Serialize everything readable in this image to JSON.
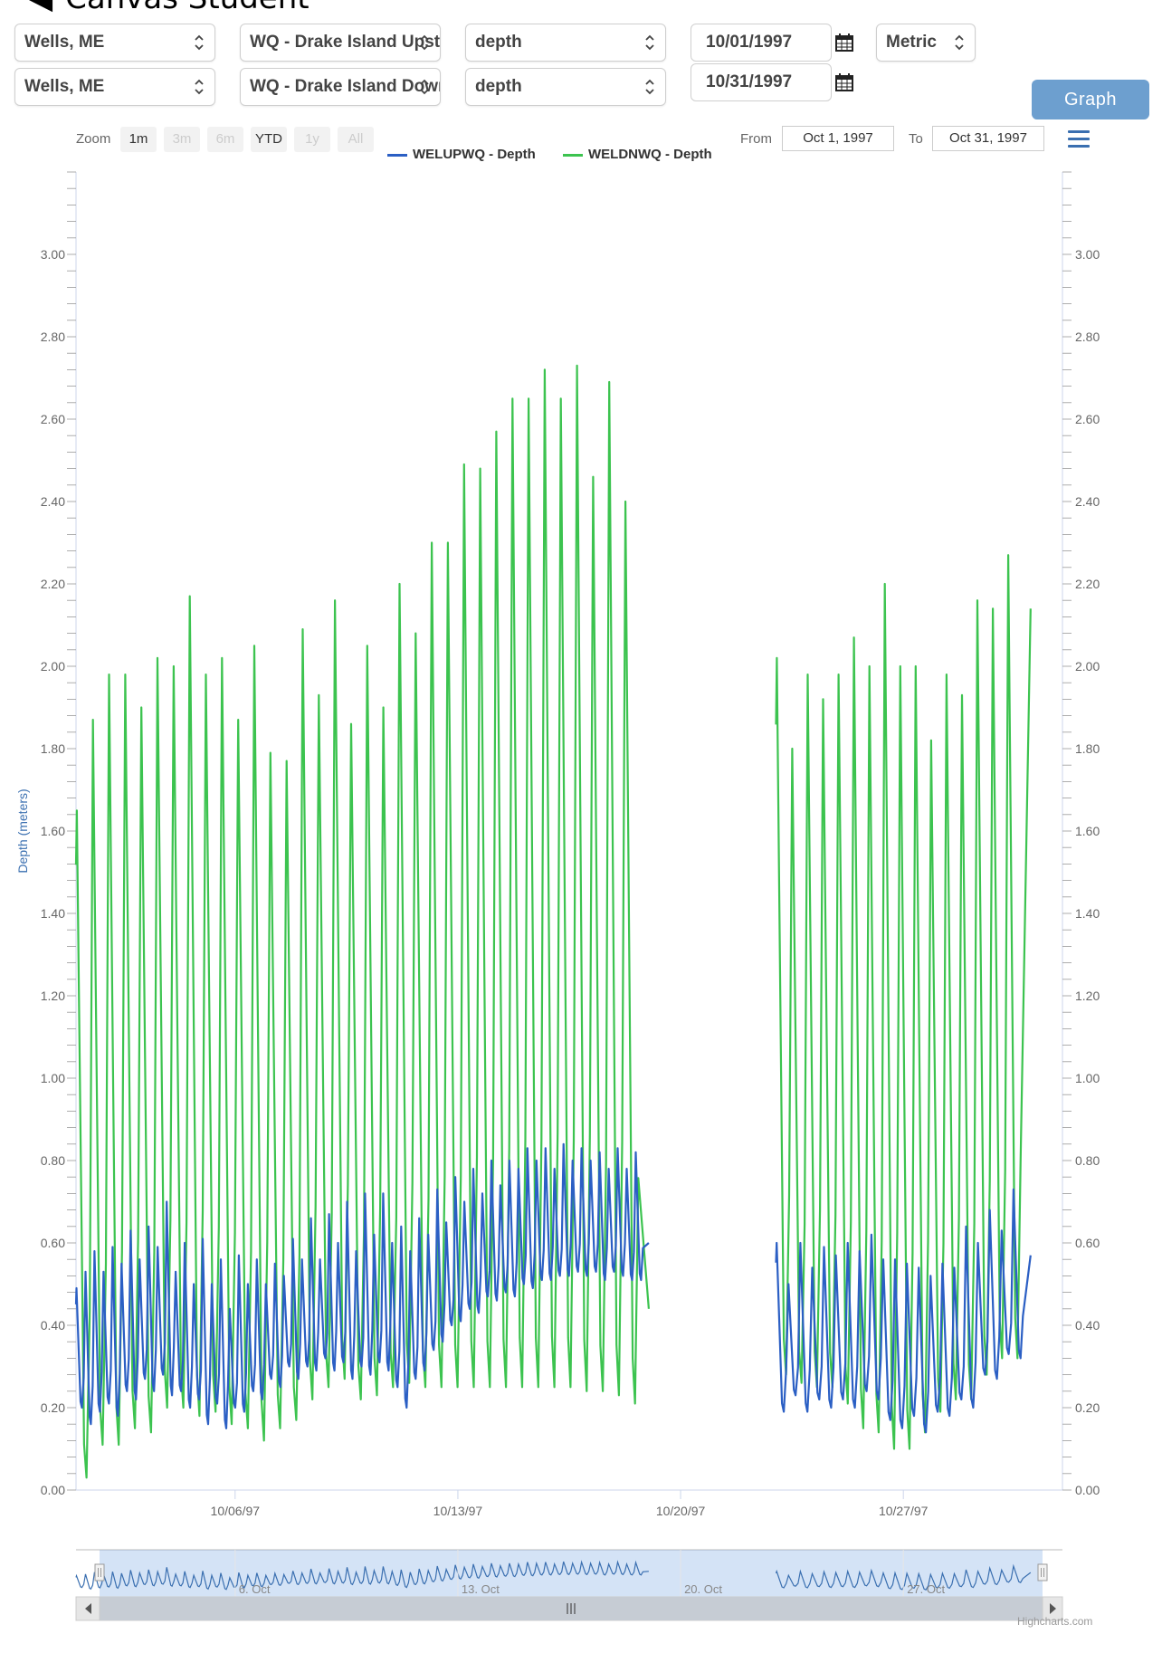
{
  "app": {
    "title": "Canvas Student",
    "back_glyph": "◀"
  },
  "row1": {
    "location": "Wells, ME",
    "station": "WQ - Drake Island Upstre",
    "parameter": "depth",
    "start_date": "10/01/1997",
    "units": "Metric"
  },
  "row2": {
    "location": "Wells, ME",
    "station": "WQ - Drake Island Downs",
    "parameter": "depth",
    "end_date": "10/31/1997",
    "graph_label": "Graph"
  },
  "range_selector": {
    "zoom_label": "Zoom",
    "buttons": [
      "1m",
      "3m",
      "6m",
      "YTD",
      "1y",
      "All"
    ],
    "from_label": "From",
    "from_value": "Oct 1, 1997",
    "to_label": "To",
    "to_value": "Oct 31, 1997"
  },
  "icons": {
    "menu": "hamburger-menu-icon",
    "calendar": "calendar-icon",
    "chevron": "chevron-up-down-icon"
  },
  "credits": "Highcharts.com",
  "chart_data": {
    "type": "line",
    "title": "",
    "xlabel": "",
    "ylabel": "Depth (meters)",
    "ylim": [
      0,
      3.2
    ],
    "y_ticks": [
      "0.00",
      "0.20",
      "0.40",
      "0.60",
      "0.80",
      "1.00",
      "1.20",
      "1.40",
      "1.60",
      "1.80",
      "2.00",
      "2.20",
      "2.40",
      "2.60",
      "2.80",
      "3.00"
    ],
    "x_range": [
      "1997-10-01",
      "1997-10-31"
    ],
    "x_ticks": [
      {
        "date": "1997-10-06",
        "label": "10/06/97"
      },
      {
        "date": "1997-10-13",
        "label": "10/13/97"
      },
      {
        "date": "1997-10-20",
        "label": "10/20/97"
      },
      {
        "date": "1997-10-27",
        "label": "10/27/97"
      }
    ],
    "navigator_ticks": [
      {
        "date": "1997-10-06",
        "label": "6. Oct"
      },
      {
        "date": "1997-10-13",
        "label": "13. Oct"
      },
      {
        "date": "1997-10-20",
        "label": "20. Oct"
      },
      {
        "date": "1997-10-27",
        "label": "27. Oct"
      }
    ],
    "legend_placement": "top-center",
    "series": [
      {
        "name": "WELUPWQ - Depth",
        "color": "#2b5fc4",
        "segments": [
          {
            "start": "1997-10-01",
            "end": "1997-10-19",
            "highs": [
              0.49,
              0.53,
              0.58,
              0.53,
              0.59,
              0.55,
              0.63,
              0.56,
              0.64,
              0.59,
              0.7,
              0.53,
              0.6,
              0.5,
              0.61,
              0.5,
              0.56,
              0.44,
              0.57,
              0.5,
              0.56,
              0.5,
              0.55,
              0.52,
              0.61,
              0.56,
              0.66,
              0.56,
              0.67,
              0.6,
              0.7,
              0.58,
              0.72,
              0.62,
              0.72,
              0.6,
              0.64,
              0.58,
              0.66,
              0.62,
              0.73,
              0.65,
              0.76,
              0.7,
              0.78,
              0.72,
              0.8,
              0.74,
              0.8,
              0.78,
              0.83,
              0.8,
              0.83,
              0.78,
              0.84,
              0.8,
              0.83,
              0.8,
              0.82,
              0.78,
              0.83,
              0.78,
              0.82
            ],
            "lows": [
              0.2,
              0.16,
              0.19,
              0.21,
              0.18,
              0.24,
              0.22,
              0.27,
              0.24,
              0.28,
              0.23,
              0.24,
              0.2,
              0.22,
              0.16,
              0.21,
              0.15,
              0.2,
              0.19,
              0.24,
              0.22,
              0.27,
              0.25,
              0.3,
              0.27,
              0.3,
              0.29,
              0.32,
              0.29,
              0.31,
              0.27,
              0.3,
              0.28,
              0.31,
              0.29,
              0.25,
              0.2,
              0.27,
              0.29,
              0.34,
              0.36,
              0.4,
              0.41,
              0.44,
              0.43,
              0.47,
              0.46,
              0.48,
              0.47,
              0.5,
              0.49,
              0.51,
              0.51,
              0.52,
              0.52,
              0.53,
              0.52,
              0.53,
              0.51,
              0.53,
              0.52,
              0.51
            ],
            "end_value": 0.6
          },
          {
            "start": "1997-10-23",
            "end": "1997-10-31",
            "highs": [
              0.6,
              0.5,
              0.6,
              0.54,
              0.59,
              0.57,
              0.6,
              0.58,
              0.62,
              0.56,
              0.56,
              0.55,
              0.54,
              0.52,
              0.55,
              0.54,
              0.64,
              0.6,
              0.68,
              0.63,
              0.73
            ],
            "lows": [
              0.19,
              0.23,
              0.19,
              0.22,
              0.2,
              0.22,
              0.2,
              0.24,
              0.22,
              0.17,
              0.15,
              0.18,
              0.14,
              0.19,
              0.18,
              0.22,
              0.2,
              0.28,
              0.27,
              0.33,
              0.32
            ],
            "end_value": 0.57
          }
        ]
      },
      {
        "name": "WELDNWQ - Depth",
        "color": "#3cc34f",
        "segments": [
          {
            "start": "1997-10-01",
            "end": "1997-10-19",
            "highs": [
              1.65,
              1.87,
              1.98,
              1.98,
              1.9,
              2.02,
              2.0,
              2.17,
              1.98,
              2.02,
              1.87,
              2.05,
              1.79,
              1.77,
              2.09,
              1.93,
              2.16,
              1.86,
              2.05,
              1.9,
              2.2,
              2.08,
              2.3,
              2.3,
              2.49,
              2.48,
              2.57,
              2.65,
              2.65,
              2.72,
              2.65,
              2.73,
              2.46,
              2.69,
              2.4
            ],
            "lows": [
              0.03,
              0.11,
              0.11,
              0.15,
              0.14,
              0.2,
              0.2,
              0.18,
              0.19,
              0.16,
              0.15,
              0.12,
              0.15,
              0.17,
              0.22,
              0.25,
              0.27,
              0.22,
              0.23,
              0.25,
              0.26,
              0.25,
              0.25,
              0.25,
              0.25,
              0.25,
              0.25,
              0.25,
              0.25,
              0.25,
              0.25,
              0.24,
              0.24,
              0.23,
              0.21
            ],
            "end_value": 0.44
          },
          {
            "start": "1997-10-23",
            "end": "1997-10-31",
            "highs": [
              2.02,
              1.8,
              1.98,
              1.92,
              1.98,
              2.07,
              2.0,
              2.2,
              2.0,
              2.0,
              1.82,
              1.98,
              1.93,
              2.16,
              2.14,
              2.27
            ],
            "lows": [
              0.28,
              0.26,
              0.25,
              0.25,
              0.21,
              0.15,
              0.14,
              0.1,
              0.1,
              0.14,
              0.19,
              0.22,
              0.22,
              0.28,
              0.32,
              0.32
            ],
            "end_value": 2.14
          }
        ]
      }
    ]
  }
}
